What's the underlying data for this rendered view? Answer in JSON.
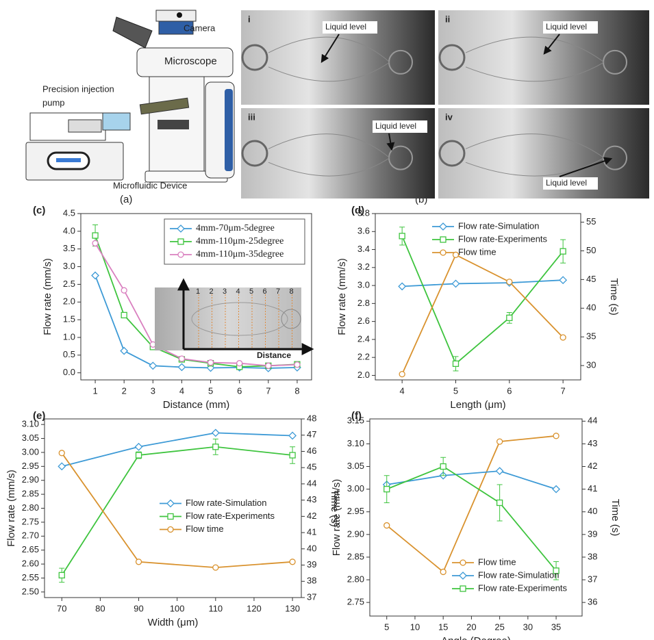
{
  "figure": {
    "panel_a": {
      "label": "(a)",
      "camera": "Camera",
      "microscope": "Microscope",
      "pump": [
        "Precision injection",
        "pump"
      ],
      "device": "Microfluidic Device"
    },
    "panel_b": {
      "label": "(b)",
      "images": [
        {
          "label": "i",
          "annotation": "Liquid level"
        },
        {
          "label": "ii",
          "annotation": "Liquid level"
        },
        {
          "label": "iii",
          "annotation": "Liquid level"
        },
        {
          "label": "iv",
          "annotation": "Liquid level"
        }
      ]
    }
  },
  "chart_data": [
    {
      "panel": "(c)",
      "type": "line",
      "xlabel": "Distance (mm)",
      "ylabel": "Flow rate (mm/s)",
      "x": [
        1,
        2,
        3,
        4,
        5,
        6,
        7,
        8
      ],
      "xlim": [
        0.5,
        8.5
      ],
      "xticks": [
        1,
        2,
        3,
        4,
        5,
        6,
        7,
        8
      ],
      "ylim": [
        -0.2,
        4.5
      ],
      "yticks": [
        {
          "value": 0,
          "label": "0.0"
        },
        0.5,
        {
          "value": 1,
          "label": "1.0"
        },
        1.5,
        {
          "value": 2,
          "label": "2.0"
        },
        2.5,
        {
          "value": 3,
          "label": "3.0"
        },
        3.5,
        {
          "value": 4,
          "label": "4.0"
        },
        4.5
      ],
      "legend": "upper right",
      "legend_frame": true,
      "series": [
        {
          "name": "4mm-70μm-5degree",
          "color": "#3d9ad6",
          "marker": "diamond",
          "values": [
            2.75,
            0.62,
            0.2,
            0.16,
            0.14,
            0.15,
            0.13,
            0.15
          ]
        },
        {
          "name": "4mm-110μm-25degree",
          "color": "#3ec43e",
          "marker": "square",
          "values": [
            3.88,
            1.63,
            0.73,
            0.38,
            0.27,
            0.17,
            0.2,
            0.24
          ],
          "errors": [
            0.3,
            0.05,
            0.05,
            0.03,
            0.03,
            0.03,
            0.03,
            0.03
          ]
        },
        {
          "name": "4mm-110μm-35degree",
          "color": "#d97fbf",
          "marker": "circle",
          "values": [
            3.66,
            2.33,
            0.8,
            0.4,
            0.29,
            0.27,
            0.2,
            0.23
          ]
        }
      ],
      "inset": {
        "labels": [
          "1",
          "2",
          "3",
          "4",
          "5",
          "6",
          "7",
          "8"
        ],
        "axis_label": "Distance"
      }
    },
    {
      "panel": "(d)",
      "type": "line",
      "xlabel": "Length (μm)",
      "ylabel": "Flow rate (mm/s)",
      "y2label": "Time (s)",
      "x": [
        4,
        5,
        6,
        7
      ],
      "xlim": [
        3.5,
        7.33
      ],
      "xticks": [
        4,
        5,
        6,
        7
      ],
      "ylim": [
        1.95,
        3.8
      ],
      "yticks": [
        {
          "value": 2,
          "label": "2.0"
        },
        2.2,
        2.4,
        2.6,
        2.8,
        {
          "value": 3,
          "label": "3.0"
        },
        3.2,
        3.4,
        3.6,
        3.8
      ],
      "y2lim": [
        27.5,
        56.5
      ],
      "y2ticks": [
        30,
        35,
        40,
        45,
        50,
        55
      ],
      "legend": "upper center",
      "series": [
        {
          "name": "Flow rate-Simulation",
          "color": "#3d9ad6",
          "marker": "diamond",
          "values": [
            2.99,
            3.02,
            3.03,
            3.06
          ]
        },
        {
          "name": "Flow rate-Experiments",
          "color": "#3ec43e",
          "marker": "square",
          "values": [
            3.55,
            2.13,
            2.64,
            3.38
          ],
          "errors": [
            0.1,
            0.08,
            0.06,
            0.13
          ]
        },
        {
          "name": "Flow time",
          "color": "#d9922e",
          "marker": "circle",
          "axis": "y2",
          "values": [
            28.5,
            49.3,
            44.6,
            34.9
          ]
        }
      ]
    },
    {
      "panel": "(e)",
      "type": "line",
      "xlabel": "Width (μm)",
      "ylabel": "Flow rate (mm/s)",
      "y2label": "Time (s)",
      "x": [
        70,
        90,
        110,
        130
      ],
      "xlim": [
        65.5,
        132.3
      ],
      "xticks": [
        70,
        80,
        90,
        100,
        110,
        120,
        130
      ],
      "ylim": [
        2.48,
        3.12
      ],
      "yticks": [
        {
          "value": 2.5,
          "label": "2.50"
        },
        2.55,
        {
          "value": 2.6,
          "label": "2.60"
        },
        2.65,
        {
          "value": 2.7,
          "label": "2.70"
        },
        2.75,
        {
          "value": 2.8,
          "label": "2.80"
        },
        2.85,
        {
          "value": 2.9,
          "label": "2.90"
        },
        2.95,
        {
          "value": 3,
          "label": "3.00"
        },
        3.05,
        {
          "value": 3.1,
          "label": "3.10"
        }
      ],
      "y2lim": [
        37,
        48
      ],
      "y2ticks": [
        37,
        38,
        39,
        40,
        41,
        42,
        43,
        44,
        45,
        46,
        47,
        48
      ],
      "legend": "center right",
      "series": [
        {
          "name": "Flow rate-Simulation",
          "color": "#3d9ad6",
          "marker": "diamond",
          "values": [
            2.95,
            3.02,
            3.07,
            3.06
          ]
        },
        {
          "name": "Flow rate-Experiments",
          "color": "#3ec43e",
          "marker": "square",
          "values": [
            2.56,
            2.99,
            3.02,
            2.99
          ],
          "errors": [
            0.025,
            0.012,
            0.028,
            0.03
          ]
        },
        {
          "name": "Flow time",
          "color": "#d9922e",
          "marker": "circle",
          "axis": "y2",
          "values": [
            45.9,
            39.2,
            38.85,
            39.2
          ]
        }
      ]
    },
    {
      "panel": "(f)",
      "type": "line",
      "xlabel": "Angle (Degree)",
      "ylabel": "Flow rate (mm/s)",
      "y2label": "Time (s)",
      "x": [
        5,
        15,
        25,
        35
      ],
      "xlim": [
        2,
        39.6
      ],
      "xticks": [
        5,
        10,
        15,
        20,
        25,
        30,
        35
      ],
      "ylim": [
        2.72,
        3.155
      ],
      "yticks": [
        2.75,
        {
          "value": 2.8,
          "label": "2.80"
        },
        2.85,
        {
          "value": 2.9,
          "label": "2.90"
        },
        2.95,
        {
          "value": 3,
          "label": "3.00"
        },
        3.05,
        {
          "value": 3.1,
          "label": "3.10"
        },
        3.15
      ],
      "y2lim": [
        35.4,
        44.1
      ],
      "y2ticks": [
        36,
        37,
        38,
        39,
        40,
        41,
        42,
        43,
        44
      ],
      "legend": "lower right",
      "series": [
        {
          "name": "Flow time",
          "color": "#d9922e",
          "marker": "circle",
          "axis": "y2",
          "values": [
            39.4,
            37.35,
            43.1,
            43.35
          ]
        },
        {
          "name": "Flow rate-Simulation",
          "color": "#3d9ad6",
          "marker": "diamond",
          "values": [
            3.01,
            3.03,
            3.04,
            3.0
          ]
        },
        {
          "name": "Flow rate-Experiments",
          "color": "#3ec43e",
          "marker": "square",
          "values": [
            3.0,
            3.05,
            2.97,
            2.82
          ],
          "errors": [
            0.03,
            0.02,
            0.04,
            0.02
          ]
        }
      ]
    }
  ]
}
